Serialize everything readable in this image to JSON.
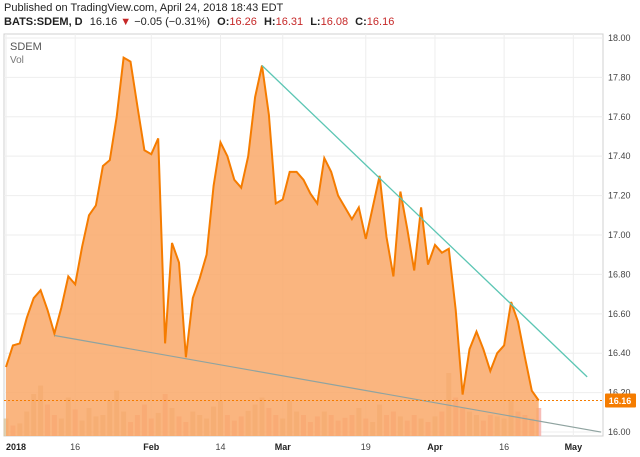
{
  "header": {
    "published": "Published on TradingView.com, April 24, 2018 18:43 EDT",
    "symbol": "BATS:SDEM, D",
    "last": "16.16",
    "arrow": "▼",
    "change": "−0.05 (−0.31%)",
    "open_label": "O:",
    "open": "16.26",
    "high_label": "H:",
    "high": "16.31",
    "low_label": "L:",
    "low": "16.08",
    "close_label": "C:",
    "close": "16.16"
  },
  "colors": {
    "area_line": "#f57c00",
    "area_fill": "#f9a868",
    "trendline": "#5cc6b4",
    "lower_trendline": "#8fa3a0",
    "volume_up": "#d7c39a",
    "volume_down": "#f4a7a0",
    "last_price_bg": "#f57c00",
    "last_price_line": "#f57c00"
  },
  "chart_data": {
    "type": "area",
    "symbol_label": "SDEM",
    "volume_label": "Vol",
    "last_price_label": "16.16",
    "ylim": [
      15.98,
      18.02
    ],
    "y_ticks": [
      "18.00",
      "17.80",
      "17.60",
      "17.40",
      "17.20",
      "17.00",
      "16.80",
      "16.60",
      "16.40",
      "16.20",
      "16.00"
    ],
    "x_ticks": [
      "2018",
      "16",
      "Feb",
      "14",
      "Mar",
      "19",
      "Apr",
      "16",
      "May"
    ],
    "x_ticks_bold": [
      "2018",
      "Feb",
      "Mar",
      "Apr",
      "May"
    ],
    "x_tick_index": [
      0,
      10,
      21,
      31,
      40,
      52,
      62,
      72,
      82
    ],
    "x_range": [
      0,
      86
    ],
    "y_values": [
      16.33,
      16.44,
      16.45,
      16.58,
      16.68,
      16.72,
      16.62,
      16.5,
      16.63,
      16.79,
      16.75,
      16.94,
      17.1,
      17.15,
      17.35,
      17.38,
      17.6,
      17.9,
      17.88,
      17.65,
      17.43,
      17.41,
      17.49,
      16.45,
      16.96,
      16.86,
      16.38,
      16.68,
      16.78,
      16.9,
      17.25,
      17.47,
      17.4,
      17.28,
      17.24,
      17.4,
      17.7,
      17.86,
      17.61,
      17.16,
      17.18,
      17.32,
      17.32,
      17.28,
      17.21,
      17.16,
      17.39,
      17.32,
      17.2,
      17.14,
      17.08,
      17.14,
      16.98,
      17.14,
      17.3,
      16.99,
      16.79,
      17.22,
      17.03,
      16.82,
      17.14,
      16.85,
      16.95,
      16.91,
      16.93,
      16.62,
      16.19,
      16.42,
      16.51,
      16.42,
      16.31,
      16.4,
      16.44,
      16.66,
      16.56,
      16.38,
      16.21,
      16.16
    ],
    "volume": [
      0.25,
      0.15,
      0.18,
      0.35,
      0.6,
      0.72,
      0.45,
      0.3,
      0.25,
      0.55,
      0.38,
      0.22,
      0.4,
      0.28,
      0.3,
      0.5,
      0.65,
      0.35,
      0.2,
      0.3,
      0.45,
      0.25,
      0.33,
      0.6,
      0.4,
      0.28,
      0.2,
      0.35,
      0.3,
      0.25,
      0.42,
      0.5,
      0.3,
      0.22,
      0.28,
      0.36,
      0.45,
      0.55,
      0.4,
      0.3,
      0.25,
      0.5,
      0.35,
      0.3,
      0.2,
      0.28,
      0.35,
      0.3,
      0.22,
      0.26,
      0.3,
      0.4,
      0.25,
      0.2,
      0.45,
      0.3,
      0.35,
      0.28,
      0.22,
      0.3,
      0.25,
      0.2,
      0.28,
      0.35,
      0.9,
      0.55,
      0.4,
      0.35,
      0.3,
      0.22,
      0.3,
      0.28,
      0.25,
      0.5,
      0.35,
      0.3,
      0.25,
      0.4
    ],
    "volume_down": [
      false,
      true,
      false,
      false,
      false,
      false,
      true,
      true,
      false,
      false,
      true,
      false,
      false,
      false,
      false,
      false,
      false,
      false,
      true,
      true,
      true,
      true,
      false,
      true,
      false,
      true,
      true,
      false,
      false,
      false,
      false,
      false,
      true,
      true,
      true,
      false,
      false,
      false,
      true,
      true,
      false,
      false,
      false,
      true,
      true,
      true,
      false,
      true,
      true,
      true,
      true,
      false,
      true,
      false,
      false,
      true,
      true,
      false,
      true,
      true,
      false,
      true,
      false,
      true,
      false,
      true,
      true,
      false,
      false,
      true,
      true,
      false,
      false,
      false,
      true,
      true,
      true,
      true
    ],
    "trendline_upper": {
      "from": [
        37,
        17.86
      ],
      "to": [
        84,
        16.28
      ]
    },
    "trendline_lower": {
      "from": [
        7,
        16.49
      ],
      "to": [
        86,
        16.0
      ]
    },
    "last_price": 16.16
  }
}
